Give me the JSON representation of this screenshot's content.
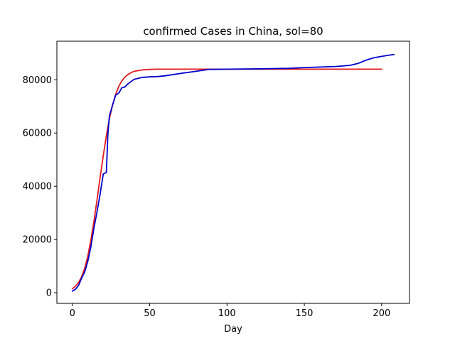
{
  "chart_data": {
    "type": "line",
    "title": "confirmed Cases in China, sol=80",
    "xlabel": "Day",
    "ylabel": "",
    "xlim": [
      -10,
      218
    ],
    "ylim": [
      -4000,
      94500
    ],
    "xticks": [
      0,
      50,
      100,
      150,
      200
    ],
    "yticks": [
      0,
      20000,
      40000,
      60000,
      80000
    ],
    "grid": false,
    "legend": "none",
    "series": [
      {
        "color": "#e41a1c",
        "x": [
          0,
          2,
          4,
          6,
          8,
          10,
          12,
          14,
          16,
          18,
          20,
          22,
          24,
          26,
          28,
          30,
          32,
          34,
          36,
          38,
          40,
          45,
          50,
          55,
          60,
          80,
          100,
          120,
          150,
          200
        ],
        "values": [
          1500,
          2400,
          3800,
          6000,
          9200,
          13800,
          19800,
          27000,
          35000,
          43500,
          51500,
          59000,
          65500,
          70500,
          74500,
          77500,
          79600,
          81000,
          82000,
          82700,
          83200,
          83700,
          83900,
          84000,
          84000,
          84000,
          84000,
          84000,
          84000,
          84000
        ]
      },
      {
        "color": "#0000cc",
        "x": [
          0,
          2,
          4,
          6,
          8,
          10,
          12,
          14,
          16,
          18,
          20,
          22,
          23,
          24,
          26,
          28,
          30,
          32,
          34,
          36,
          40,
          45,
          50,
          55,
          60,
          70,
          80,
          88,
          100,
          120,
          140,
          150,
          160,
          170,
          175,
          180,
          185,
          190,
          195,
          200,
          204,
          208
        ],
        "values": [
          600,
          1300,
          2700,
          5500,
          7800,
          11800,
          17300,
          24400,
          30500,
          37200,
          44600,
          45200,
          59800,
          66500,
          70500,
          74200,
          75000,
          77000,
          77300,
          78500,
          80200,
          80900,
          81100,
          81200,
          81500,
          82400,
          83200,
          83900,
          84000,
          84100,
          84300,
          84600,
          84800,
          85000,
          85200,
          85500,
          86200,
          87400,
          88300,
          88800,
          89200,
          89500
        ]
      }
    ]
  }
}
